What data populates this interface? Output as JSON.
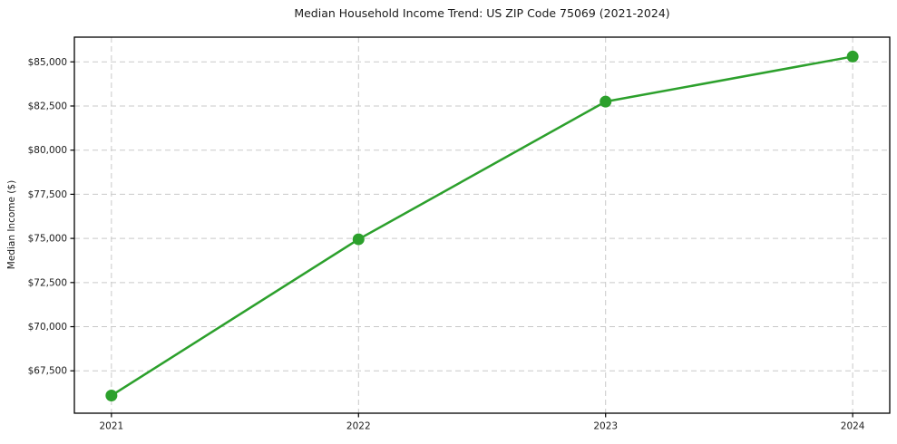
{
  "chart_data": {
    "type": "line",
    "title": "Median Household Income Trend: US ZIP Code 75069 (2021-2024)",
    "xlabel": "",
    "ylabel": "Median Income ($)",
    "x": [
      2021,
      2022,
      2023,
      2024
    ],
    "series": [
      {
        "name": "Median Household Income",
        "values": [
          66100,
          74950,
          82750,
          85300
        ]
      }
    ],
    "xtick_labels": [
      "2021",
      "2022",
      "2023",
      "2024"
    ],
    "yticks": [
      67500,
      70000,
      72500,
      75000,
      77500,
      80000,
      82500,
      85000
    ],
    "ytick_labels": [
      "$67,500",
      "$70,000",
      "$72,500",
      "$75,000",
      "$77,500",
      "$80,000",
      "$82,500",
      "$85,000"
    ],
    "xlim": [
      2020.85,
      2024.15
    ],
    "ylim": [
      65100,
      86400
    ],
    "grid": true,
    "grid_style": "dashed",
    "legend": "none",
    "line_color": "#2ca02c",
    "marker": "circle",
    "grid_color": "#c9c9c9",
    "axis_color": "#000000",
    "text_color": "#1a1a1a",
    "background_color": "#ffffff"
  }
}
